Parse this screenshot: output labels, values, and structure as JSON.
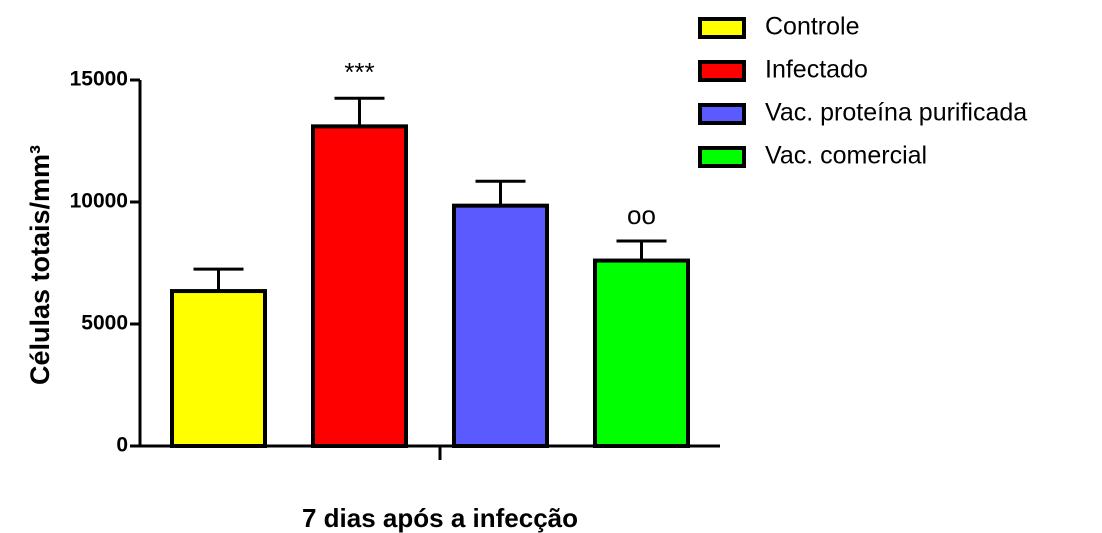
{
  "chart_data": {
    "type": "bar",
    "ylabel": "Células totais/mm³",
    "categories": [
      "7 dias após a infecção"
    ],
    "series": [
      {
        "name": "Controle",
        "color": "#ffff00",
        "values": [
          6350
        ],
        "errors": [
          900
        ]
      },
      {
        "name": "Infectado",
        "color": "#ff0000",
        "values": [
          13100
        ],
        "errors": [
          1150
        ],
        "annotation": "***"
      },
      {
        "name": "Vac. proteína purificada",
        "color": "#5a5aff",
        "values": [
          9850
        ],
        "errors": [
          1000
        ]
      },
      {
        "name": "Vac. comercial",
        "color": "#00ff00",
        "values": [
          7600
        ],
        "errors": [
          800
        ],
        "annotation": "oo"
      }
    ],
    "ylim": [
      0,
      15000
    ],
    "yticks": [
      0,
      5000,
      10000,
      15000
    ],
    "legend": "top-right"
  }
}
